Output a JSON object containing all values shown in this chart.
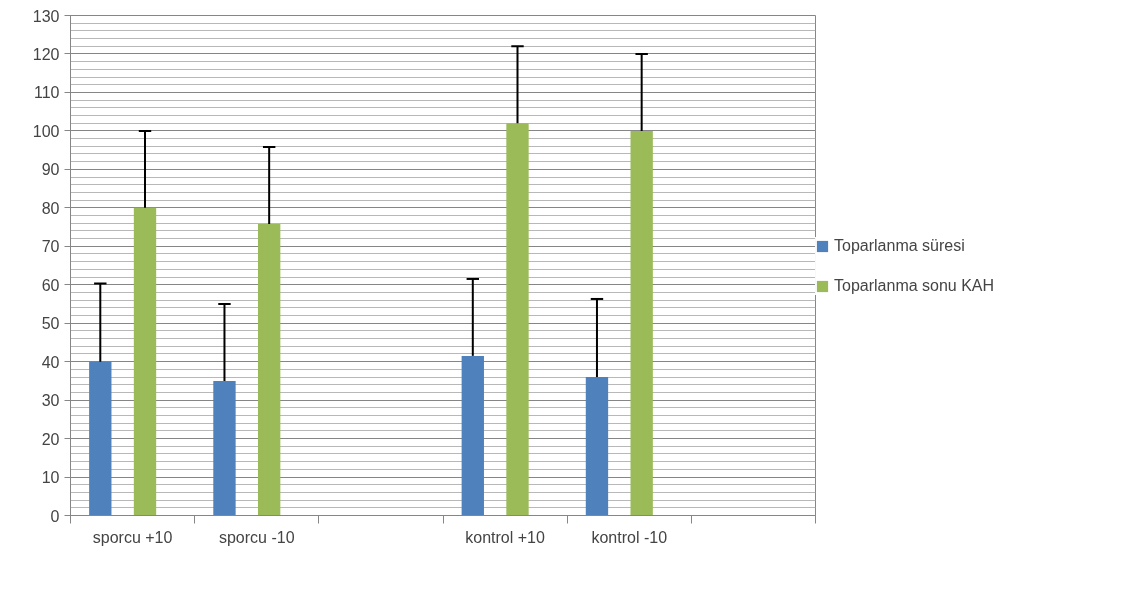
{
  "chart_data": {
    "type": "bar",
    "categories": [
      "sporcu +10",
      "sporcu -10",
      null,
      "kontrol +10",
      "kontrol -10",
      null
    ],
    "series": [
      {
        "name": "Toparlanma süresi",
        "color": "#4f81bd",
        "values": [
          40,
          35,
          null,
          41.5,
          36,
          null
        ],
        "errors": [
          [
            40,
            60.3
          ],
          [
            35,
            55
          ],
          null,
          [
            41.5,
            61.5
          ],
          [
            36,
            56.3
          ],
          null
        ]
      },
      {
        "name": "Toparlanma sonu KAH",
        "color": "#9bbb59",
        "values": [
          80,
          75.8,
          null,
          102,
          100,
          null
        ],
        "errors": [
          [
            80,
            100
          ],
          [
            75.8,
            95.8
          ],
          null,
          [
            102,
            122
          ],
          [
            100,
            120
          ],
          null
        ]
      }
    ],
    "ylim": [
      0,
      130
    ],
    "yticks": [
      0,
      10,
      20,
      30,
      40,
      50,
      60,
      70,
      80,
      90,
      100,
      110,
      120,
      130
    ],
    "grid": "y",
    "legend": "right"
  }
}
